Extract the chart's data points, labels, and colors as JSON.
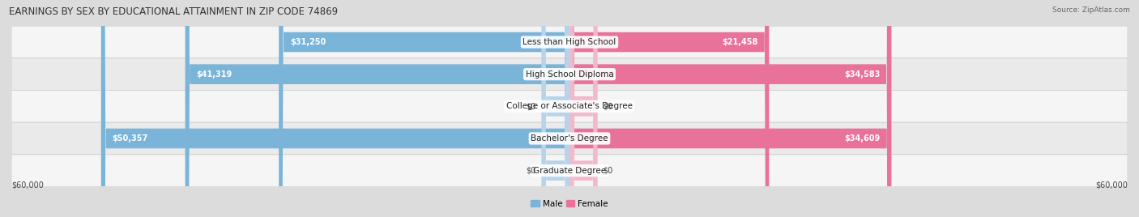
{
  "title": "EARNINGS BY SEX BY EDUCATIONAL ATTAINMENT IN ZIP CODE 74869",
  "source": "Source: ZipAtlas.com",
  "categories": [
    "Less than High School",
    "High School Diploma",
    "College or Associate's Degree",
    "Bachelor's Degree",
    "Graduate Degree"
  ],
  "male_values": [
    31250,
    41319,
    0,
    50357,
    0
  ],
  "female_values": [
    21458,
    34583,
    0,
    34609,
    0
  ],
  "male_color": "#7ab4d8",
  "female_color": "#e8729a",
  "male_color_zero": "#b8d4ea",
  "female_color_zero": "#f2b8cc",
  "x_max": 60000,
  "x_label_left": "$60,000",
  "x_label_right": "$60,000",
  "bg_color": "#dcdcdc",
  "row_bg_even": "#f8f8f8",
  "row_bg_odd": "#eeeeee",
  "title_fontsize": 8.5,
  "label_fontsize": 7.5,
  "value_fontsize": 7,
  "legend_fontsize": 7.5,
  "zero_stub": 3000
}
